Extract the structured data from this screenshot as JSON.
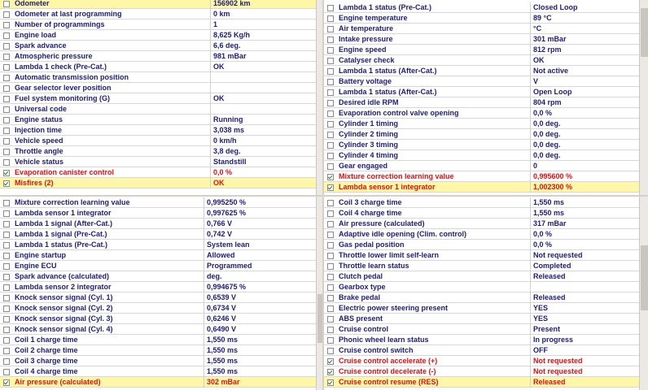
{
  "panels": [
    {
      "rows": [
        {
          "name": "Odometer",
          "value": "156902 km",
          "selected": true
        },
        {
          "name": "Odometer at last programming",
          "value": "0 km"
        },
        {
          "name": "Number of programmings",
          "value": "1"
        },
        {
          "name": "Engine load",
          "value": "8,625 Kg/h"
        },
        {
          "name": "Spark advance",
          "value": "6,6 deg."
        },
        {
          "name": "Atmospheric pressure",
          "value": "981 mBar"
        },
        {
          "name": "Lambda 1 check (Pre-Cat.)",
          "value": "OK"
        },
        {
          "name": "Automatic transmission position"
        },
        {
          "name": "Gear selector lever position"
        },
        {
          "name": "Fuel system monitoring (G)",
          "value": "OK"
        },
        {
          "name": "Universal code"
        },
        {
          "name": "Engine status",
          "value": "Running"
        },
        {
          "name": "Injection time",
          "value": "3,038 ms"
        },
        {
          "name": "Vehicle speed",
          "value": "0 km/h"
        },
        {
          "name": "Throttle angle",
          "value": "3,8 deg."
        },
        {
          "name": "Vehicle status",
          "value": "Standstill"
        },
        {
          "name": "Evaporation canister control",
          "value": "0,0 %",
          "checked": true,
          "alert": true
        },
        {
          "name": "Misfires (2)",
          "value": "OK",
          "checked": true,
          "alert": true,
          "selected": true
        }
      ]
    },
    {
      "rows": [
        {
          "name": "Lambda 1 status (Pre-Cat.)",
          "value": "Closed Loop"
        },
        {
          "name": "Engine temperature",
          "value": "89 °C"
        },
        {
          "name": "Air temperature",
          "value": "°C"
        },
        {
          "name": "Intake pressure",
          "value": "301 mBar"
        },
        {
          "name": "Engine speed",
          "value": "812 rpm"
        },
        {
          "name": "Catalyser check",
          "value": "OK"
        },
        {
          "name": "Lambda 1 status (After-Cat.)",
          "value": "Not active"
        },
        {
          "name": "Battery voltage",
          "value": "V"
        },
        {
          "name": "Lambda 1 status (After-Cat.)",
          "value": "Open Loop"
        },
        {
          "name": "Desired idle RPM",
          "value": "804 rpm"
        },
        {
          "name": "Evaporation control valve opening",
          "value": "0,0 %"
        },
        {
          "name": "Cylinder 1 timing",
          "value": "0,0 deg."
        },
        {
          "name": "Cylinder 2 timing",
          "value": "0,0 deg."
        },
        {
          "name": "Cylinder 3 timing",
          "value": "0,0 deg."
        },
        {
          "name": "Cylinder 4 timing",
          "value": "0,0 deg."
        },
        {
          "name": "Gear engaged",
          "value": "0"
        },
        {
          "name": "Mixture correction learning value",
          "value": "0,995600 %",
          "checked": true,
          "alert": true
        },
        {
          "name": "Lambda sensor 1 integrator",
          "value": "1,002300 %",
          "checked": true,
          "alert": true,
          "selected": true
        }
      ]
    },
    {
      "rows": [
        {
          "name": "Mixture correction learning value",
          "value": "0,995250 %"
        },
        {
          "name": "Lambda sensor 1 integrator",
          "value": "0,997625 %"
        },
        {
          "name": "Lambda 1 signal (After-Cat.)",
          "value": "0,766 V"
        },
        {
          "name": "Lambda 1 signal (Pre-Cat.)",
          "value": "0,742 V"
        },
        {
          "name": "Lambda 1 status (Pre-Cat.)",
          "value": "System lean"
        },
        {
          "name": "Engine startup",
          "value": "Allowed"
        },
        {
          "name": "Engine ECU",
          "value": "Programmed"
        },
        {
          "name": "Spark advance (calculated)",
          "value": "deg."
        },
        {
          "name": "Lambda sensor 2 integrator",
          "value": "0,994675 %"
        },
        {
          "name": "Knock sensor signal (Cyl. 1)",
          "value": "0,6539 V"
        },
        {
          "name": "Knock sensor signal (Cyl. 2)",
          "value": "0,6734 V"
        },
        {
          "name": "Knock sensor signal (Cyl. 3)",
          "value": "0,6246 V"
        },
        {
          "name": "Knock sensor signal (Cyl. 4)",
          "value": "0,6490 V"
        },
        {
          "name": "Coil 1 charge time",
          "value": "1,550 ms"
        },
        {
          "name": "Coil 2 charge time",
          "value": "1,550 ms"
        },
        {
          "name": "Coil 3 charge time",
          "value": "1,550 ms"
        },
        {
          "name": "Coil 4 charge time",
          "value": "1,550 ms"
        },
        {
          "name": "Air pressure (calculated)",
          "value": "302 mBar",
          "checked": true,
          "alert": true,
          "selected": true
        }
      ]
    },
    {
      "rows": [
        {
          "name": "Coil 3 charge time",
          "value": "1,550 ms"
        },
        {
          "name": "Coil 4 charge time",
          "value": "1,550 ms"
        },
        {
          "name": "Air pressure (calculated)",
          "value": "317 mBar"
        },
        {
          "name": "Adaptive idle opening (Clim. control)",
          "value": "0,0 %"
        },
        {
          "name": "Gas pedal position",
          "value": "0,0 %"
        },
        {
          "name": "Throttle lower limit self-learn",
          "value": "Not requested"
        },
        {
          "name": "Throttle learn status",
          "value": "Completed"
        },
        {
          "name": "Clutch pedal",
          "value": "Released"
        },
        {
          "name": "Gearbox type"
        },
        {
          "name": "Brake pedal",
          "value": "Released"
        },
        {
          "name": "Electric power steering present",
          "value": "YES"
        },
        {
          "name": "ABS present",
          "value": "YES"
        },
        {
          "name": "Cruise control",
          "value": "Present"
        },
        {
          "name": "Phonic wheel learn status",
          "value": "In progress"
        },
        {
          "name": "Cruise control switch",
          "value": "OFF"
        },
        {
          "name": "Cruise control accelerate (+)",
          "value": "Not requested",
          "checked": true,
          "alert": true
        },
        {
          "name": "Cruise control decelerate (-)",
          "value": "Not requested",
          "checked": true,
          "alert": true
        },
        {
          "name": "Cruise control resume (RES)",
          "value": "Released",
          "checked": true,
          "alert": true,
          "selected": true
        }
      ]
    }
  ]
}
